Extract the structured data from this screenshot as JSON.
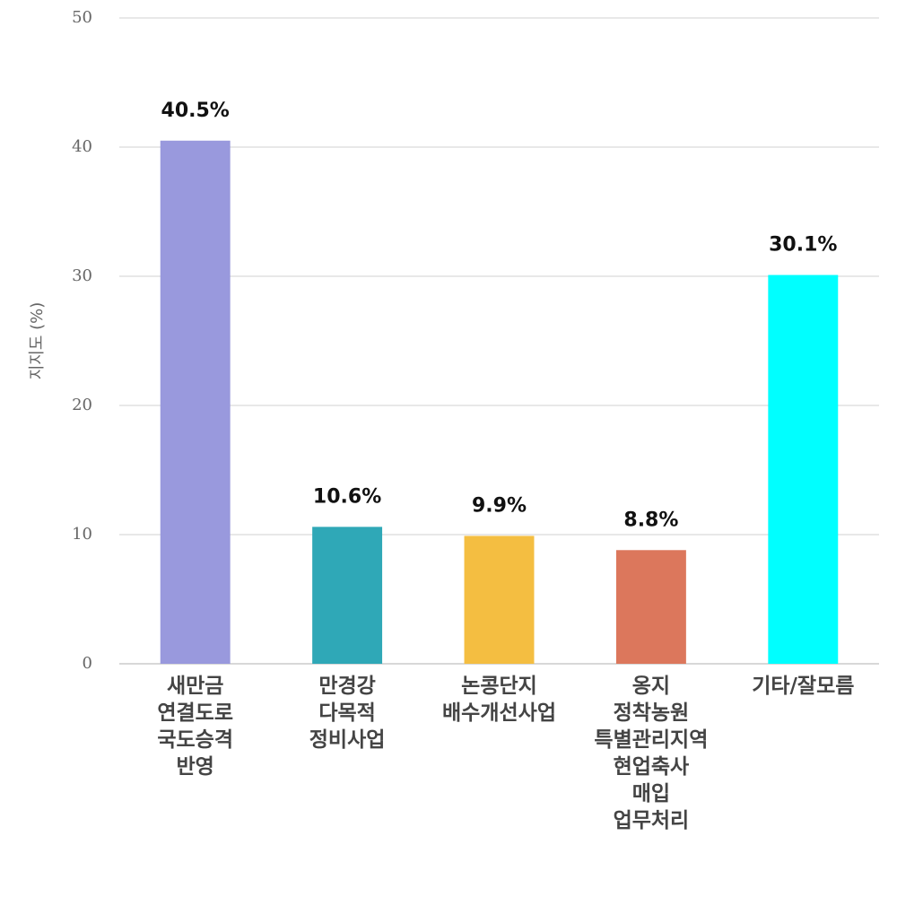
{
  "chart_data": {
    "type": "bar",
    "y_label": "지지도 (%)",
    "categories": [
      "새만금\n연결도로\n국도승격\n반영",
      "만경강\n다목적\n정비사업",
      "논콩단지\n배수개선사업",
      "옹지\n정착농원\n특별관리지역\n현업축사\n매입\n업무처리",
      "기타/잘모름"
    ],
    "values": [
      40.5,
      10.6,
      9.9,
      8.8,
      30.1
    ],
    "value_labels": [
      "40.5%",
      "10.6%",
      "9.9%",
      "8.8%",
      "30.1%"
    ],
    "colors": [
      "#9999dd",
      "#2fa8b7",
      "#f4be41",
      "#dc775c",
      "#00ffff"
    ],
    "ylim": [
      0,
      50
    ],
    "yticks": [
      0,
      10,
      20,
      30,
      40,
      50
    ],
    "grid": true
  }
}
